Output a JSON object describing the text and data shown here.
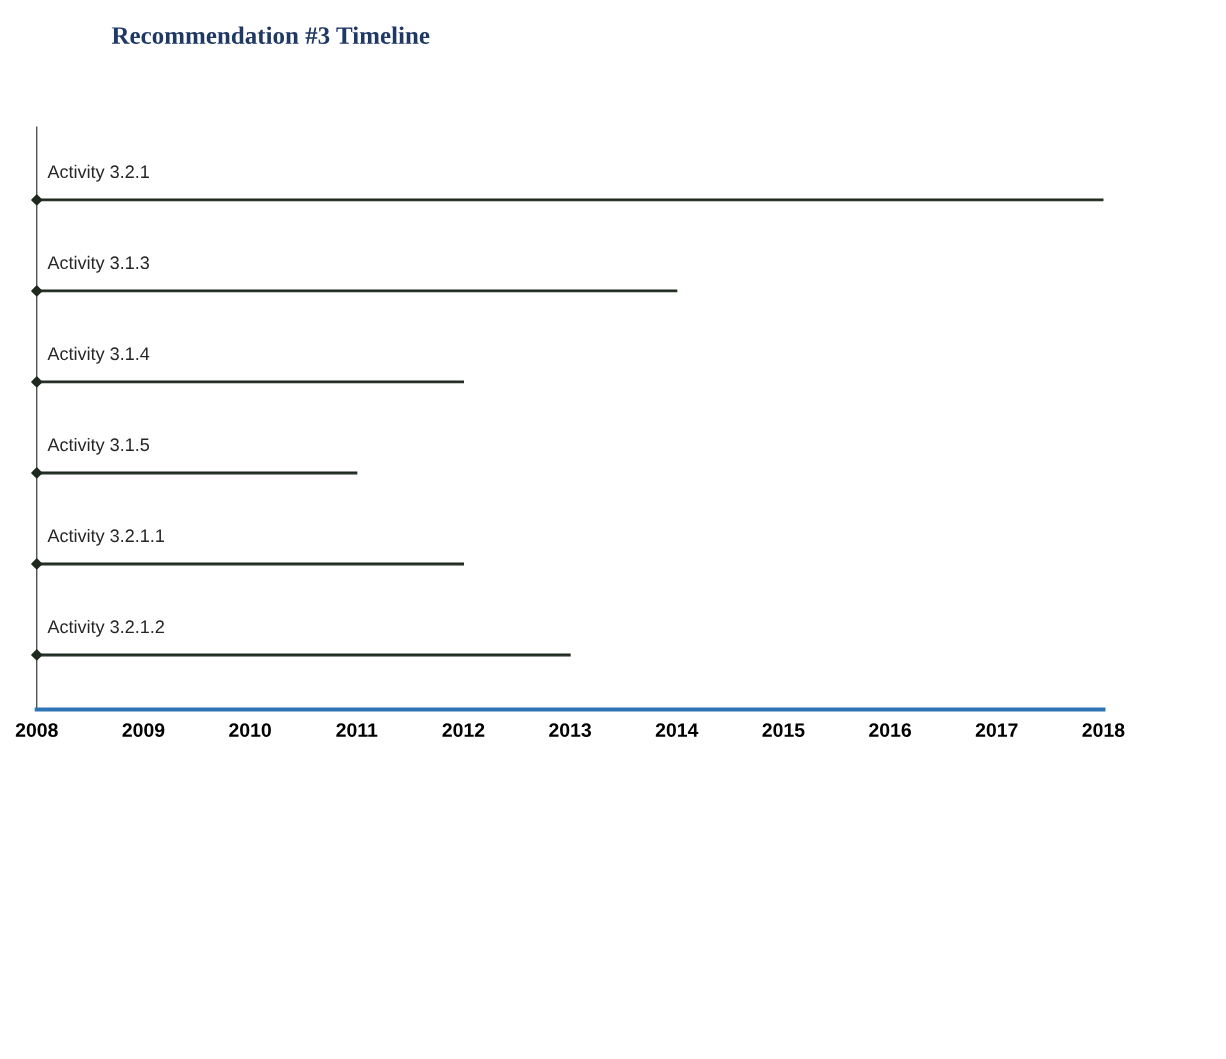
{
  "chart_data": {
    "type": "bar",
    "orientation": "horizontal",
    "title": "Recommendation #3 Timeline",
    "categories": [
      "Activity 3.2.1",
      "Activity 3.1.3",
      "Activity 3.1.4",
      "Activity 3.1.5",
      "Activity 3.2.1.1",
      "Activity 3.2.1.2"
    ],
    "base": [
      2008,
      2008,
      2008,
      2008,
      2008,
      2008
    ],
    "values": [
      10,
      6,
      4,
      3,
      4,
      5
    ],
    "color": "#1f2a1f",
    "marker": "diamond",
    "xlim": [
      2008,
      2018
    ],
    "xticks": [
      2008,
      2009,
      2010,
      2011,
      2012,
      2013,
      2014,
      2015,
      2016,
      2017,
      2018
    ],
    "grid": false,
    "legend": false
  }
}
